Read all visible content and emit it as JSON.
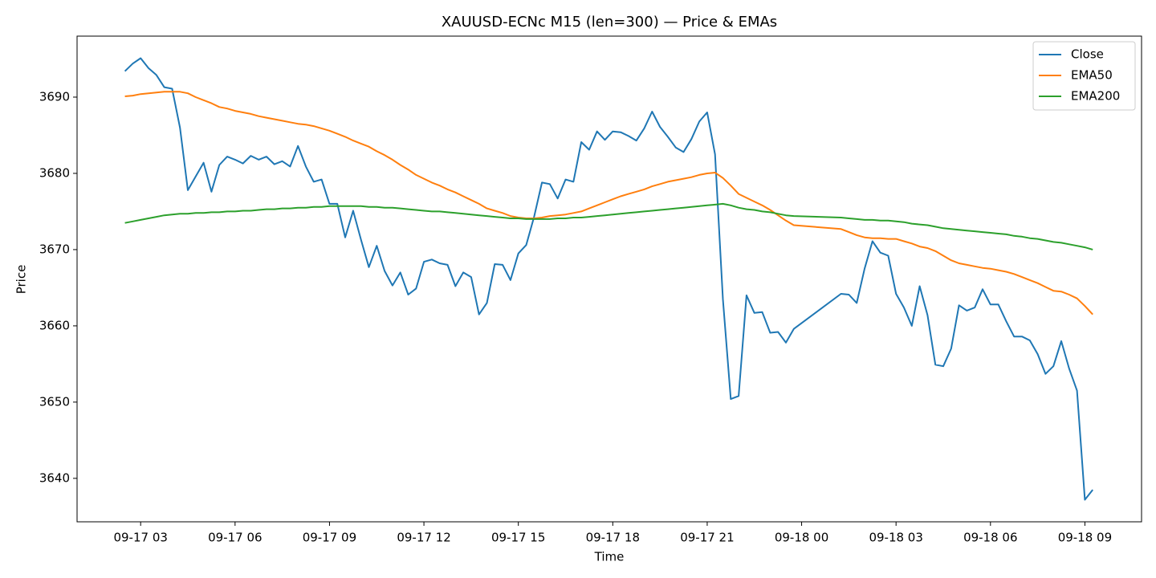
{
  "chart_data": {
    "type": "line",
    "title": "XAUUSD-ECNc M15  (len=300) — Price & EMAs",
    "x_label": "Time",
    "y_label": "Price",
    "xlim": [
      0.98,
      34.8
    ],
    "xticks": [
      {
        "value": 3,
        "label": "09-17 03"
      },
      {
        "value": 6,
        "label": "09-17 06"
      },
      {
        "value": 9,
        "label": "09-17 09"
      },
      {
        "value": 12,
        "label": "09-17 12"
      },
      {
        "value": 15,
        "label": "09-17 15"
      },
      {
        "value": 18,
        "label": "09-17 18"
      },
      {
        "value": 21,
        "label": "09-17 21"
      },
      {
        "value": 24,
        "label": "09-18 00"
      },
      {
        "value": 27,
        "label": "09-18 03"
      },
      {
        "value": 30,
        "label": "09-18 06"
      },
      {
        "value": 33,
        "label": "09-18 09"
      }
    ],
    "ylim": [
      3634.3,
      3698.0
    ],
    "yticks": [
      3640,
      3650,
      3660,
      3670,
      3680,
      3690
    ],
    "legend": "upper right",
    "grid": false,
    "x": [
      2.5,
      2.75,
      3,
      3.25,
      3.5,
      3.75,
      4,
      4.25,
      4.5,
      4.75,
      5,
      5.25,
      5.5,
      5.75,
      6,
      6.25,
      6.5,
      6.75,
      7,
      7.25,
      7.5,
      7.75,
      8,
      8.25,
      8.5,
      8.75,
      9,
      9.25,
      9.5,
      9.75,
      10,
      10.25,
      10.5,
      10.75,
      11,
      11.25,
      11.5,
      11.75,
      12,
      12.25,
      12.5,
      12.75,
      13,
      13.25,
      13.5,
      13.75,
      14,
      14.25,
      14.5,
      14.75,
      15,
      15.25,
      15.5,
      15.75,
      16,
      16.25,
      16.5,
      16.75,
      17,
      17.25,
      17.5,
      17.75,
      18,
      18.25,
      18.5,
      18.75,
      19,
      19.25,
      19.5,
      19.75,
      20,
      20.25,
      20.5,
      20.75,
      21,
      21.25,
      21.5,
      21.75,
      22,
      22.25,
      22.5,
      22.75,
      23,
      23.25,
      23.5,
      23.75,
      25.25,
      25.5,
      25.75,
      26,
      26.25,
      26.5,
      26.75,
      27,
      27.25,
      27.5,
      27.75,
      28,
      28.25,
      28.5,
      28.75,
      29,
      29.25,
      29.5,
      29.75,
      30,
      30.25,
      30.5,
      30.75,
      31,
      31.25,
      31.5,
      31.75,
      32,
      32.25,
      32.5,
      32.75,
      33,
      33.25
    ],
    "series": [
      {
        "name": "Close",
        "color": "#1f77b4",
        "values": [
          3693.4,
          3694.4,
          3695.1,
          3693.8,
          3692.9,
          3691.3,
          3691.1,
          3686,
          3677.8,
          3679.6,
          3681.4,
          3677.6,
          3681.1,
          3682.2,
          3681.8,
          3681.3,
          3682.3,
          3681.8,
          3682.2,
          3681.2,
          3681.6,
          3680.9,
          3683.6,
          3680.9,
          3678.9,
          3679.2,
          3676,
          3676,
          3671.6,
          3675.1,
          3671.3,
          3667.7,
          3670.5,
          3667.2,
          3665.3,
          3667,
          3664.1,
          3664.9,
          3668.4,
          3668.7,
          3668.2,
          3668,
          3665.2,
          3667,
          3666.4,
          3661.5,
          3663,
          3668.1,
          3668,
          3666,
          3669.5,
          3670.6,
          3674.3,
          3678.8,
          3678.6,
          3676.7,
          3679.2,
          3678.9,
          3684.1,
          3683.1,
          3685.5,
          3684.4,
          3685.5,
          3685.4,
          3684.9,
          3684.3,
          3685.9,
          3688.1,
          3686.1,
          3684.8,
          3683.4,
          3682.8,
          3684.5,
          3686.8,
          3688,
          3682.5,
          3663.5,
          3650.4,
          3650.8,
          3664,
          3661.7,
          3661.8,
          3659.1,
          3659.2,
          3657.8,
          3659.6,
          3664.2,
          3664.1,
          3663,
          3667.5,
          3671.1,
          3669.6,
          3669.2,
          3664.2,
          3662.4,
          3660,
          3665.2,
          3661.4,
          3654.9,
          3654.7,
          3657,
          3662.7,
          3662,
          3662.4,
          3664.8,
          3662.8,
          3662.8,
          3660.6,
          3658.6,
          3658.6,
          3658.1,
          3656.3,
          3653.7,
          3654.7,
          3658,
          3654.4,
          3651.5,
          3637.2,
          3638.5
        ]
      },
      {
        "name": "EMA50",
        "color": "#ff7f0e",
        "values": [
          3690.1,
          3690.2,
          3690.4,
          3690.5,
          3690.6,
          3690.7,
          3690.7,
          3690.7,
          3690.5,
          3690.0,
          3689.6,
          3689.2,
          3688.7,
          3688.5,
          3688.2,
          3688.0,
          3687.8,
          3687.5,
          3687.3,
          3687.1,
          3686.9,
          3686.7,
          3686.5,
          3686.4,
          3686.2,
          3685.9,
          3685.6,
          3685.2,
          3684.8,
          3684.3,
          3683.9,
          3683.5,
          3682.9,
          3682.4,
          3681.8,
          3681.1,
          3680.5,
          3679.8,
          3679.3,
          3678.8,
          3678.4,
          3677.9,
          3677.5,
          3677.0,
          3676.5,
          3676.0,
          3675.4,
          3675.1,
          3674.8,
          3674.4,
          3674.2,
          3674.1,
          3674.1,
          3674.2,
          3674.4,
          3674.5,
          3674.6,
          3674.8,
          3675.0,
          3675.4,
          3675.8,
          3676.2,
          3676.6,
          3677.0,
          3677.3,
          3677.6,
          3677.9,
          3678.3,
          3678.6,
          3678.9,
          3679.1,
          3679.3,
          3679.5,
          3679.8,
          3680.0,
          3680.1,
          3679.4,
          3678.4,
          3677.3,
          3676.8,
          3676.3,
          3675.8,
          3675.2,
          3674.5,
          3673.8,
          3673.2,
          3672.7,
          3672.3,
          3671.9,
          3671.6,
          3671.5,
          3671.5,
          3671.4,
          3671.4,
          3671.1,
          3670.8,
          3670.4,
          3670.2,
          3669.8,
          3669.2,
          3668.6,
          3668.2,
          3668.0,
          3667.8,
          3667.6,
          3667.5,
          3667.3,
          3667.1,
          3666.8,
          3666.4,
          3666.0,
          3665.6,
          3665.1,
          3664.6,
          3664.5,
          3664.1,
          3663.6,
          3662.6,
          3661.5
        ]
      },
      {
        "name": "EMA200",
        "color": "#2ca02c",
        "values": [
          3673.5,
          3673.7,
          3673.9,
          3674.1,
          3674.3,
          3674.5,
          3674.6,
          3674.7,
          3674.7,
          3674.8,
          3674.8,
          3674.9,
          3674.9,
          3675.0,
          3675.0,
          3675.1,
          3675.1,
          3675.2,
          3675.3,
          3675.3,
          3675.4,
          3675.4,
          3675.5,
          3675.5,
          3675.6,
          3675.6,
          3675.7,
          3675.7,
          3675.7,
          3675.7,
          3675.7,
          3675.6,
          3675.6,
          3675.5,
          3675.5,
          3675.4,
          3675.3,
          3675.2,
          3675.1,
          3675.0,
          3675.0,
          3674.9,
          3674.8,
          3674.7,
          3674.6,
          3674.5,
          3674.4,
          3674.3,
          3674.2,
          3674.1,
          3674.1,
          3674.0,
          3674.0,
          3674.0,
          3674.0,
          3674.1,
          3674.1,
          3674.2,
          3674.2,
          3674.3,
          3674.4,
          3674.5,
          3674.6,
          3674.7,
          3674.8,
          3674.9,
          3675.0,
          3675.1,
          3675.2,
          3675.3,
          3675.4,
          3675.5,
          3675.6,
          3675.7,
          3675.8,
          3675.9,
          3676.0,
          3675.8,
          3675.5,
          3675.3,
          3675.2,
          3675.0,
          3674.9,
          3674.7,
          3674.5,
          3674.4,
          3674.2,
          3674.1,
          3674.0,
          3673.9,
          3673.9,
          3673.8,
          3673.8,
          3673.7,
          3673.6,
          3673.4,
          3673.3,
          3673.2,
          3673.0,
          3672.8,
          3672.7,
          3672.6,
          3672.5,
          3672.4,
          3672.3,
          3672.2,
          3672.1,
          3672.0,
          3671.8,
          3671.7,
          3671.5,
          3671.4,
          3671.2,
          3671.0,
          3670.9,
          3670.7,
          3670.5,
          3670.3,
          3670.0
        ]
      }
    ]
  }
}
